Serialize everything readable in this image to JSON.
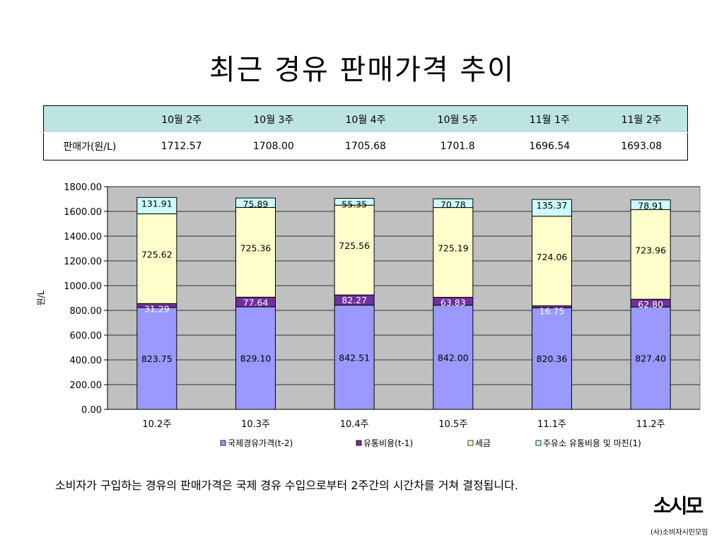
{
  "title": "최근 경유 판매가격 추이",
  "table": {
    "headers": [
      "",
      "10월 2주",
      "10월 3주",
      "10월 4주",
      "10월 5주",
      "11월 1주",
      "11월 2주"
    ],
    "row": [
      "판매가(원/L)",
      "1712.57",
      "1708.00",
      "1705.68",
      "1701.8",
      "1696.54",
      "1693.08"
    ]
  },
  "caption": "소비자가 구입하는 경유의 판매가격은 국제 경유 수입으로부터 2주간의 시간차를 거쳐 결정됩니다.",
  "logo": {
    "mark": "소시모",
    "sub": "(사)소비자시민모임",
    "accent": "#d9261c"
  },
  "chart_data": {
    "type": "bar",
    "stacked": true,
    "categories": [
      "10.2주",
      "10.3주",
      "10.4주",
      "10.5주",
      "11.1주",
      "11.2주"
    ],
    "ylabel": "원/L",
    "xlabel": "",
    "ylim": [
      0,
      1800
    ],
    "yticks": [
      "0.00",
      "200.00",
      "400.00",
      "600.00",
      "800.00",
      "1000.00",
      "1200.00",
      "1400.00",
      "1600.00",
      "1800.00"
    ],
    "grid": true,
    "legend_position": "bottom",
    "series": [
      {
        "name": "국제경유가격(t-2)",
        "color": "#9999ff",
        "values": [
          823.75,
          829.1,
          842.51,
          842.0,
          820.36,
          827.4
        ],
        "labels": [
          "823.75",
          "829.10",
          "842.51",
          "842.00",
          "820.36",
          "827.40"
        ]
      },
      {
        "name": "유통비용(t-1)",
        "color": "#7030a0",
        "values": [
          31.29,
          77.64,
          82.27,
          63.83,
          16.75,
          62.8
        ],
        "labels": [
          "31.29",
          "77.64",
          "82.27",
          "63.83",
          "16.75",
          "62.80"
        ]
      },
      {
        "name": "세금",
        "color": "#ffffcc",
        "values": [
          725.62,
          725.36,
          725.56,
          725.19,
          724.06,
          723.96
        ],
        "labels": [
          "725.62",
          "725.36",
          "725.56",
          "725.19",
          "724.06",
          "723.96"
        ]
      },
      {
        "name": "주유소 유통비용 및 마진(1)",
        "color": "#ccffff",
        "values": [
          131.91,
          75.89,
          55.35,
          70.78,
          135.37,
          78.91
        ],
        "labels": [
          "131.91",
          "75.89",
          "55.35",
          "70.78",
          "135.37",
          "78.91"
        ]
      }
    ],
    "plot_bg": "#c0c0c0"
  }
}
